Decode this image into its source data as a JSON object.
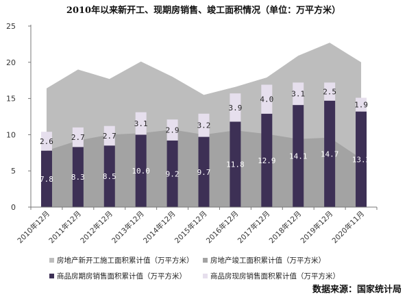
{
  "chart_data": {
    "type": "area+stacked-bar",
    "title": "2010年以来新开工、现期房销售、竣工面积情况（单位：万平方米）",
    "ylim": [
      0,
      25
    ],
    "yticks": [
      "0",
      "5",
      "10",
      "15",
      "20",
      "25"
    ],
    "categories": [
      "2010年12月",
      "2011年12月",
      "2012年12月",
      "2013年12月",
      "2014年12月",
      "2015年12月",
      "2016年12月",
      "2017年12月",
      "2018年12月",
      "2019年12月",
      "2020年11月"
    ],
    "area_series": [
      {
        "name": "房地产新开工施工面积累计值（万平方米）",
        "color": "#bdbdbd",
        "values": [
          16.4,
          19.0,
          17.7,
          20.1,
          18.0,
          15.5,
          16.6,
          17.9,
          20.9,
          22.7,
          20.0
        ]
      },
      {
        "name": "房地产竣工面积累计值（万平方米）",
        "color": "#a3a3a3",
        "values": [
          7.8,
          9.2,
          10.0,
          10.2,
          10.7,
          10.0,
          10.6,
          10.1,
          9.4,
          9.6,
          6.7
        ]
      }
    ],
    "bar_series": [
      {
        "name": "商品房期房销售面积累计值（万平方米）",
        "color": "#3d3055",
        "values": [
          7.8,
          8.3,
          8.5,
          10.0,
          9.2,
          9.7,
          11.8,
          12.9,
          14.1,
          14.7,
          13.2
        ],
        "labels": [
          "7.8",
          "8.3",
          "8.5",
          "10.0",
          "9.2",
          "9.7",
          "11.8",
          "12.9",
          "14.1",
          "14.7",
          "13.2"
        ]
      },
      {
        "name": "商品房现房销售面积累计值（万平方米）",
        "color": "#e6dfed",
        "values": [
          2.6,
          2.7,
          2.7,
          3.1,
          2.9,
          3.2,
          3.9,
          4.0,
          3.1,
          2.5,
          1.9
        ],
        "labels": [
          "2.6",
          "2.7",
          "2.7",
          "3.1",
          "2.9",
          "3.2",
          "3.9",
          "4.0",
          "3.1",
          "2.5",
          "1.9"
        ]
      }
    ],
    "legend_position": "bottom",
    "grid": false
  },
  "source": "数据来源：国家统计局"
}
